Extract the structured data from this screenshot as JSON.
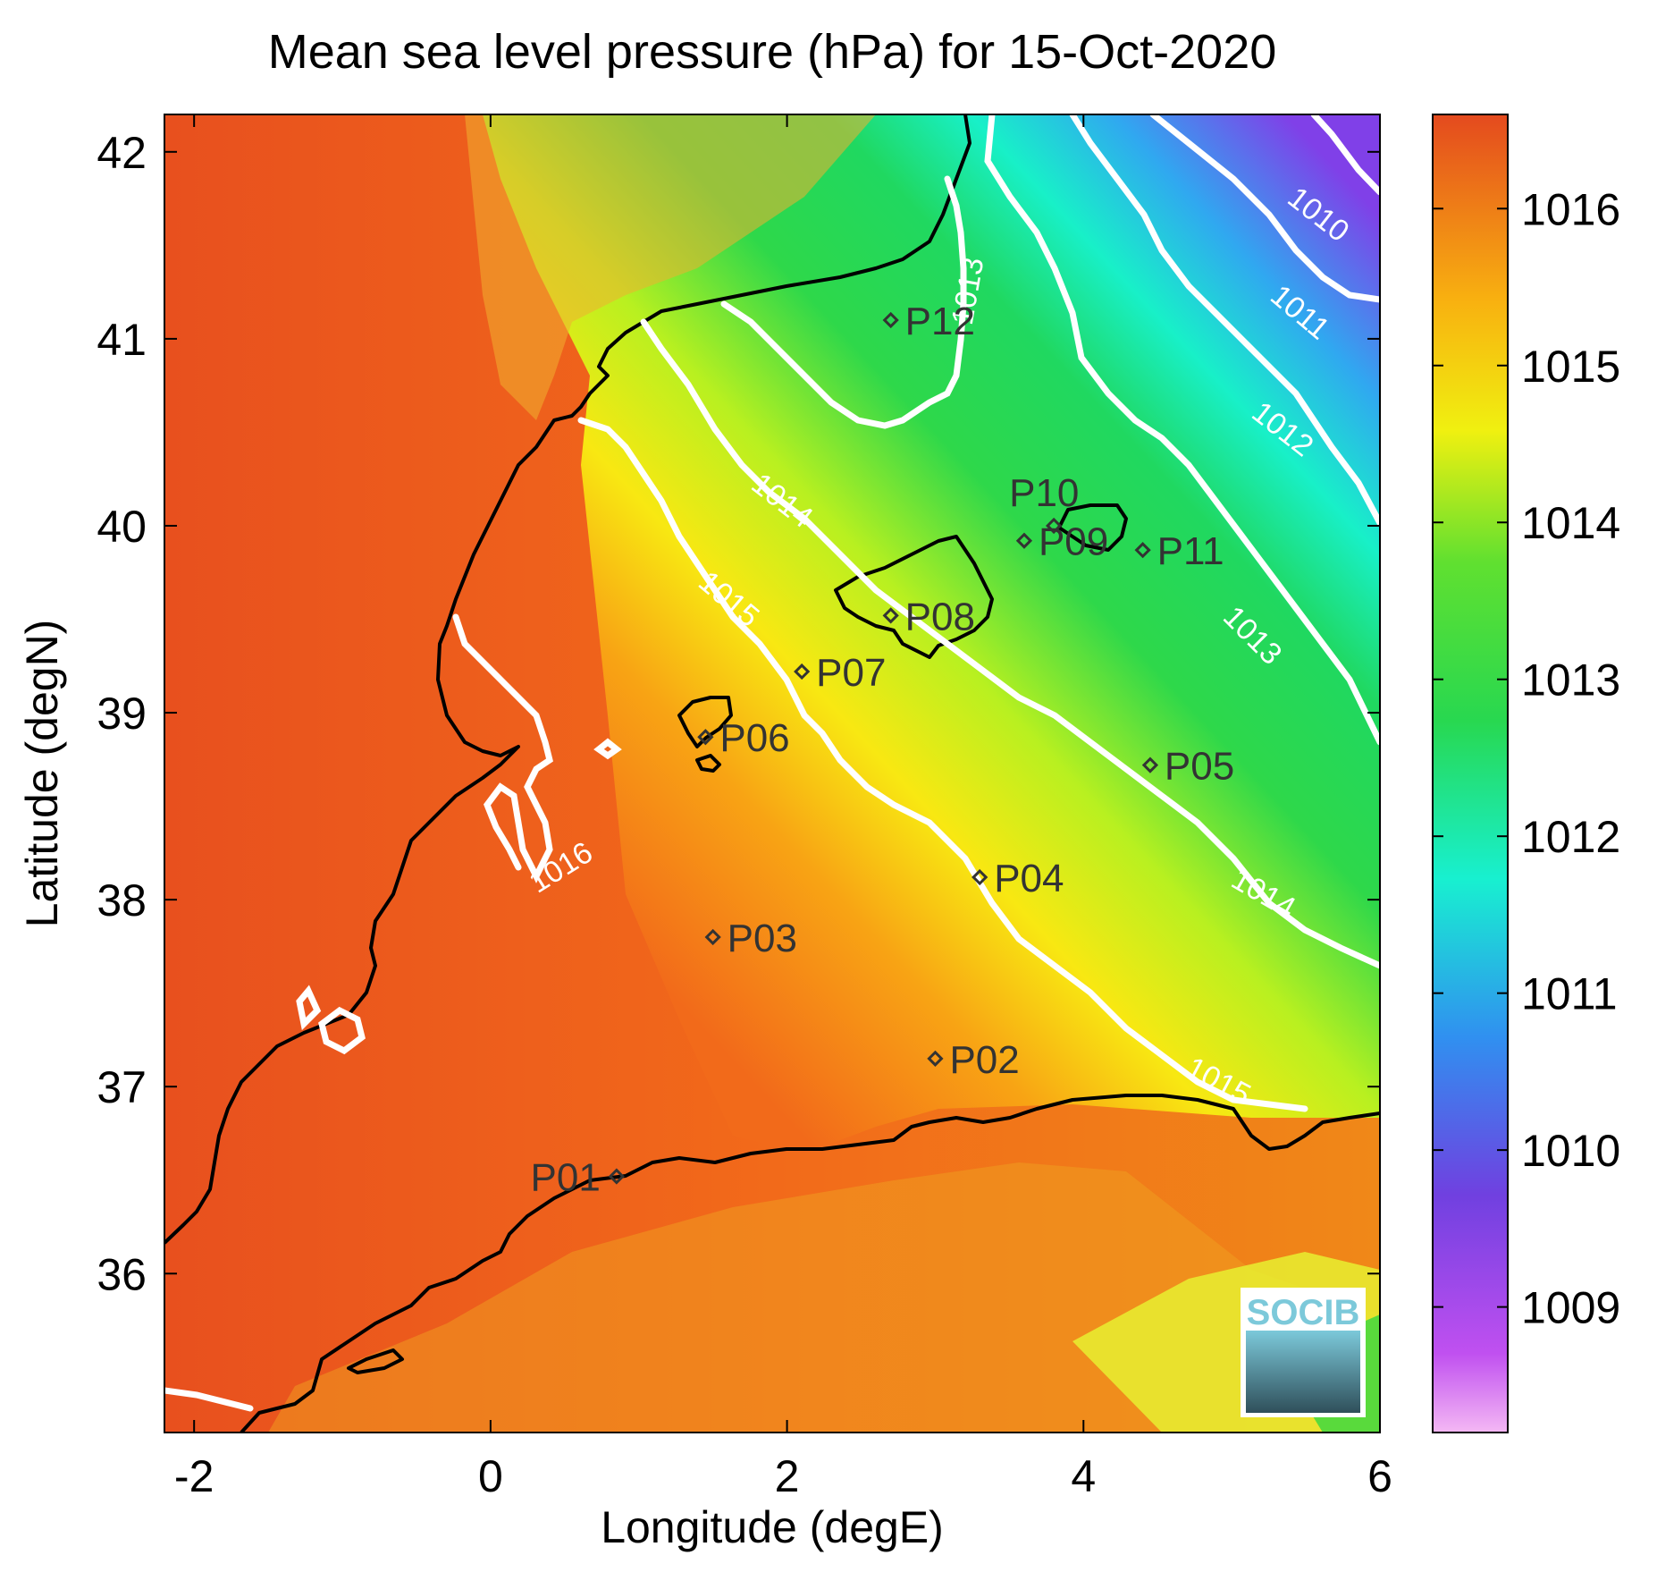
{
  "title": "Mean sea level pressure (hPa) for 15-Oct-2020",
  "xlabel": "Longitude (degE)",
  "ylabel": "Latitude (degN)",
  "x_range": [
    -2.2,
    6.0
  ],
  "y_range": [
    35.15,
    42.2
  ],
  "x_ticks": [
    "-2",
    "0",
    "2",
    "4",
    "6"
  ],
  "y_ticks": [
    "36",
    "37",
    "38",
    "39",
    "40",
    "41",
    "42"
  ],
  "colorbar": {
    "range": [
      1008.2,
      1016.6
    ],
    "ticks": [
      "1009",
      "1010",
      "1011",
      "1012",
      "1013",
      "1014",
      "1015",
      "1016"
    ],
    "colors": [
      "#f2b0f0",
      "#b340f0",
      "#6a48e0",
      "#2aa0f0",
      "#18f0c0",
      "#28d848",
      "#b0f020",
      "#f8f010",
      "#f8a010",
      "#e85020"
    ]
  },
  "contour_labels": [
    "1010",
    "1011",
    "1012",
    "1013",
    "1013",
    "1014",
    "1014",
    "1015",
    "1015",
    "1016"
  ],
  "stations": [
    {
      "label": "P01",
      "lon": 0.85,
      "lat": 36.52
    },
    {
      "label": "P02",
      "lon": 3.0,
      "lat": 37.15
    },
    {
      "label": "P03",
      "lon": 1.5,
      "lat": 37.8
    },
    {
      "label": "P04",
      "lon": 3.3,
      "lat": 38.12
    },
    {
      "label": "P05",
      "lon": 4.45,
      "lat": 38.72
    },
    {
      "label": "P06",
      "lon": 1.45,
      "lat": 38.87
    },
    {
      "label": "P07",
      "lon": 2.1,
      "lat": 39.22
    },
    {
      "label": "P08",
      "lon": 2.7,
      "lat": 39.52
    },
    {
      "label": "P09",
      "lon": 3.6,
      "lat": 39.92
    },
    {
      "label": "P10",
      "lon": 3.8,
      "lat": 40.0
    },
    {
      "label": "P11",
      "lon": 4.4,
      "lat": 39.87
    },
    {
      "label": "P12",
      "lon": 2.7,
      "lat": 41.1
    }
  ],
  "logo": {
    "text": "SOCIB"
  }
}
